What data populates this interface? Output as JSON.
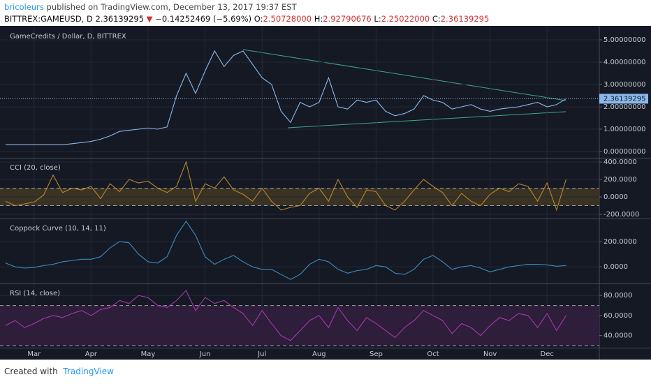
{
  "header": {
    "author": "bricoleurs",
    "published": "published on TradingView.com, December 13, 2017 19:37 EST",
    "symbol": "BITTREX:GAMEUSD, D",
    "price": "2.36139295",
    "change": "−0.14252469 (−5.69%)",
    "ohlc": [
      {
        "label": "O:",
        "value": "2.50728000"
      },
      {
        "label": "H:",
        "value": "2.92790676"
      },
      {
        "label": "L:",
        "value": "2.25022000"
      },
      {
        "label": "C:",
        "value": "2.36139295"
      }
    ]
  },
  "footer": {
    "created": "Created with",
    "brand": "TradingView"
  },
  "chart_data": [
    {
      "type": "line",
      "title": "GameCredits / Dollar, D, BITTREX",
      "color": "#8ab8ea",
      "ylim": [
        -0.25,
        5.53
      ],
      "yticks": [
        {
          "value": 0,
          "label": "0.00000000"
        },
        {
          "value": 1,
          "label": "1.00000000"
        },
        {
          "value": 2,
          "label": "2.00000000"
        },
        {
          "value": 3,
          "label": "3.00000000"
        },
        {
          "value": 4,
          "label": "4.00000000"
        },
        {
          "value": 5,
          "label": "5.00000000"
        }
      ],
      "last_value": 2.36139295,
      "values": [
        0.3,
        0.3,
        0.3,
        0.3,
        0.3,
        0.3,
        0.3,
        0.35,
        0.4,
        0.45,
        0.55,
        0.7,
        0.9,
        0.95,
        1.0,
        1.05,
        1.0,
        1.1,
        2.5,
        3.5,
        2.6,
        3.6,
        4.5,
        3.8,
        4.3,
        4.5,
        3.9,
        3.3,
        3.0,
        1.8,
        1.3,
        2.2,
        2.0,
        2.2,
        3.3,
        2.0,
        1.9,
        2.3,
        2.2,
        2.3,
        1.8,
        1.6,
        1.7,
        1.9,
        2.5,
        2.3,
        2.2,
        1.9,
        2.0,
        2.1,
        1.9,
        1.8,
        1.9,
        1.95,
        2.0,
        2.1,
        2.2,
        2.0,
        2.1,
        2.36
      ]
    },
    {
      "type": "line",
      "title": "CCI (20, close)",
      "color": "#b8862a",
      "band": [
        -100,
        100
      ],
      "band_color": "#3a3222",
      "ylim": [
        -240,
        432
      ],
      "yticks": [
        {
          "value": -200,
          "label": "-200.0000"
        },
        {
          "value": 0,
          "label": "0.0000"
        },
        {
          "value": 200,
          "label": "200.0000"
        },
        {
          "value": 400,
          "label": "400.0000"
        }
      ],
      "values": [
        -50,
        -100,
        -80,
        -60,
        20,
        250,
        50,
        100,
        80,
        120,
        -20,
        150,
        60,
        200,
        160,
        180,
        100,
        50,
        120,
        400,
        -50,
        150,
        100,
        230,
        80,
        30,
        -50,
        100,
        -50,
        -150,
        -120,
        -100,
        40,
        100,
        -50,
        200,
        0,
        -120,
        80,
        60,
        -100,
        -150,
        -50,
        80,
        200,
        120,
        50,
        -100,
        40,
        -50,
        -100,
        30,
        100,
        60,
        150,
        120,
        -50,
        160,
        -150,
        200
      ]
    },
    {
      "type": "line",
      "title": "Coppock Curve (10, 14, 11)",
      "color": "#3b8bc2",
      "ylim": [
        -126,
        371
      ],
      "yticks": [
        {
          "value": 0,
          "label": "0.0000"
        },
        {
          "value": 200,
          "label": "200.0000"
        }
      ],
      "values": [
        30,
        0,
        -10,
        -5,
        10,
        20,
        40,
        50,
        60,
        60,
        80,
        150,
        200,
        190,
        100,
        40,
        30,
        80,
        250,
        360,
        250,
        80,
        20,
        60,
        90,
        40,
        0,
        -20,
        -20,
        -60,
        -100,
        -60,
        20,
        60,
        40,
        -20,
        -50,
        -30,
        -20,
        10,
        0,
        -50,
        -60,
        -20,
        60,
        90,
        40,
        -20,
        0,
        10,
        -10,
        -40,
        -20,
        0,
        10,
        20,
        20,
        15,
        5,
        10
      ]
    },
    {
      "type": "line",
      "title": "RSI (14, close)",
      "color": "#a63aa6",
      "band": [
        30,
        70
      ],
      "band_color": "#2e1d3b",
      "ylim": [
        28.6,
        90.6
      ],
      "yticks": [
        {
          "value": 40,
          "label": "40.0000"
        },
        {
          "value": 60,
          "label": "60.0000"
        },
        {
          "value": 80,
          "label": "80.0000"
        }
      ],
      "categories": [
        null,
        null,
        null,
        "Mar",
        null,
        null,
        null,
        null,
        null,
        "Apr",
        null,
        null,
        null,
        null,
        null,
        "May",
        null,
        null,
        null,
        null,
        null,
        "Jun",
        null,
        null,
        null,
        null,
        null,
        "Jul",
        null,
        null,
        null,
        null,
        null,
        "Aug",
        null,
        null,
        null,
        null,
        null,
        "Sep",
        null,
        null,
        null,
        null,
        null,
        "Oct",
        null,
        null,
        null,
        null,
        null,
        "Nov",
        null,
        null,
        null,
        null,
        null,
        "Dec",
        null,
        null
      ],
      "values": [
        50,
        55,
        48,
        52,
        57,
        60,
        58,
        62,
        65,
        60,
        66,
        68,
        75,
        72,
        80,
        78,
        70,
        68,
        75,
        85,
        65,
        78,
        72,
        75,
        68,
        62,
        50,
        65,
        52,
        40,
        35,
        45,
        55,
        60,
        48,
        68,
        55,
        45,
        58,
        52,
        45,
        38,
        48,
        55,
        65,
        60,
        55,
        42,
        52,
        48,
        40,
        50,
        58,
        55,
        62,
        60,
        48,
        62,
        45,
        60
      ]
    }
  ]
}
